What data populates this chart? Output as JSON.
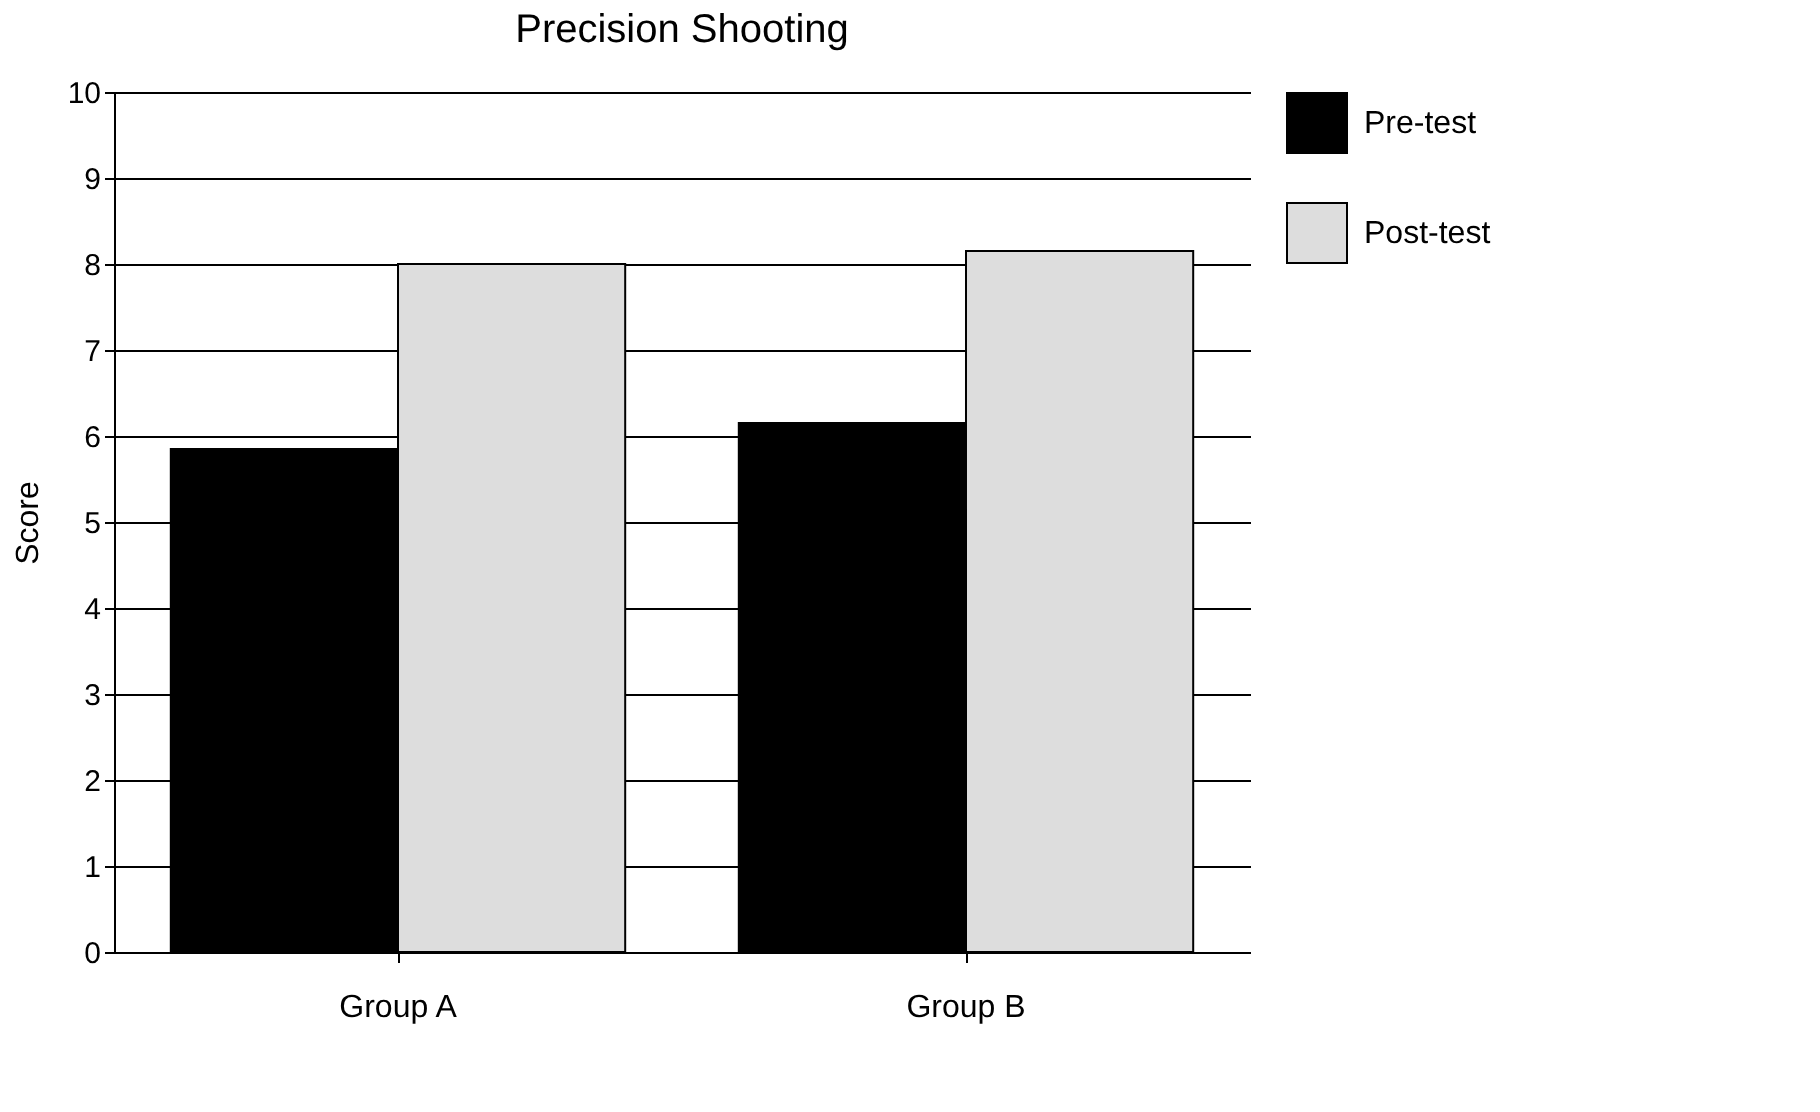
{
  "chart_data": {
    "type": "bar",
    "title": "Precision Shooting",
    "ylabel": "Score",
    "categories": [
      "Group A",
      "Group B"
    ],
    "series": [
      {
        "name": "Pre-test",
        "color": "#000000",
        "values": [
          5.85,
          6.15
        ]
      },
      {
        "name": "Post-test",
        "color": "#dddddd",
        "values": [
          8.0,
          8.15
        ]
      }
    ],
    "ylim": [
      0,
      10
    ],
    "yticks": [
      0,
      1,
      2,
      3,
      4,
      5,
      6,
      7,
      8,
      9,
      10
    ],
    "grid": "y",
    "legend": "top right"
  }
}
